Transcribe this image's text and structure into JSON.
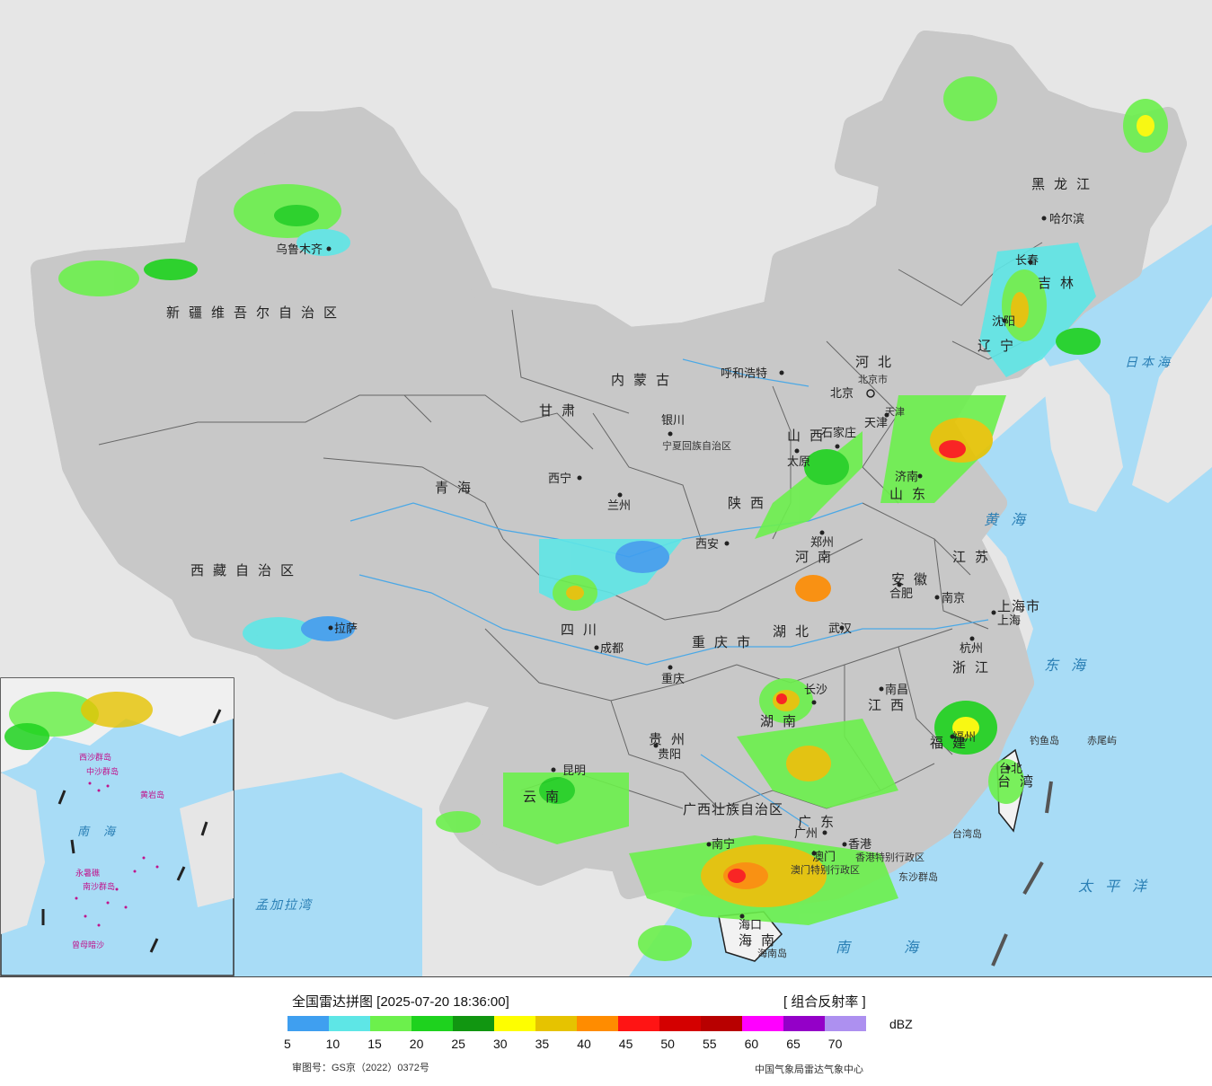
{
  "map": {
    "provinces": [
      {
        "name": "新疆维吾尔自治区"
      },
      {
        "name": "西藏自治区"
      },
      {
        "name": "青海"
      },
      {
        "name": "甘肃"
      },
      {
        "name": "内蒙古"
      },
      {
        "name": "黑龙江"
      },
      {
        "name": "吉林"
      },
      {
        "name": "辽宁"
      },
      {
        "name": "河北"
      },
      {
        "name": "山西"
      },
      {
        "name": "山东"
      },
      {
        "name": "陕西"
      },
      {
        "name": "河南"
      },
      {
        "name": "江苏"
      },
      {
        "name": "安徽"
      },
      {
        "name": "四川"
      },
      {
        "name": "湖北"
      },
      {
        "name": "浙江"
      },
      {
        "name": "重庆市"
      },
      {
        "name": "湖南"
      },
      {
        "name": "江西"
      },
      {
        "name": "贵州"
      },
      {
        "name": "福建"
      },
      {
        "name": "云南"
      },
      {
        "name": "广西壮族自治区"
      },
      {
        "name": "广东"
      },
      {
        "name": "台湾"
      },
      {
        "name": "海南"
      },
      {
        "name": "上海市"
      },
      {
        "name": "宁夏回族自治区"
      },
      {
        "name": "天津"
      },
      {
        "name": "北京市"
      },
      {
        "name": "香港特别行政区"
      },
      {
        "name": "澳门特别行政区"
      }
    ],
    "cities": [
      "乌鲁木齐",
      "拉萨",
      "西宁",
      "兰州",
      "银川",
      "呼和浩特",
      "北京",
      "天津",
      "石家庄",
      "太原",
      "济南",
      "郑州",
      "西安",
      "成都",
      "重庆",
      "武汉",
      "合肥",
      "南京",
      "上海",
      "杭州",
      "南昌",
      "长沙",
      "贵阳",
      "昆明",
      "福州",
      "台北",
      "南宁",
      "广州",
      "香港",
      "澳门",
      "海口",
      "哈尔滨",
      "长春",
      "沈阳"
    ],
    "seas": [
      "日本海",
      "黄海",
      "东海",
      "太平洋",
      "南海",
      "孟加拉湾"
    ],
    "islands": [
      "钓鱼岛",
      "赤尾屿",
      "台湾岛",
      "东沙群岛",
      "海南岛",
      "中沙群岛",
      "南沙群岛",
      "西沙群岛",
      "黄岩岛",
      "永暑礁",
      "曾母暗沙"
    ],
    "inset": {
      "sea": "南海"
    }
  },
  "legend": {
    "title": "全国雷达拼图 [2025-07-20 18:36:00]",
    "product": "[ 组合反射率 ]",
    "unit": "dBZ",
    "ticks": [
      "5",
      "10",
      "15",
      "20",
      "25",
      "30",
      "35",
      "40",
      "45",
      "50",
      "55",
      "60",
      "65",
      "70"
    ],
    "colors": [
      "#3f9ff0",
      "#5ee6e6",
      "#6cf04c",
      "#1ed21e",
      "#119611",
      "#fefe00",
      "#e6c300",
      "#ff8c00",
      "#ff1414",
      "#d40000",
      "#b80000",
      "#ff00ff",
      "#9400c8",
      "#ad90f0"
    ],
    "approval": "审图号：GS京（2022）0372号",
    "agency": "中国气象局雷达气象中心"
  }
}
